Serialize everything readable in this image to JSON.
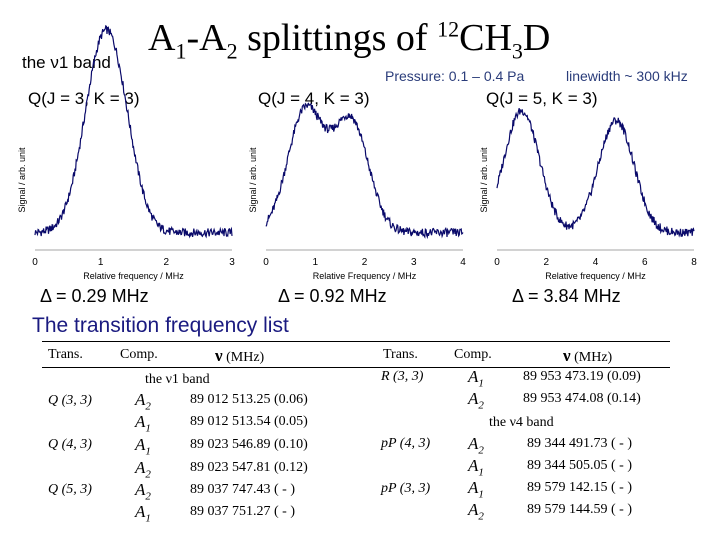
{
  "header": {
    "band_label": "the ν1 band",
    "title_main": "A",
    "title_sub1": "1",
    "title_dash": "-A",
    "title_sub2": "2",
    "title_mid": " splittings of ",
    "title_sup": "12",
    "title_ch": "CH",
    "title_sub3": "3",
    "title_d": "D",
    "pressure": "Pressure: 0.1 – 0.4 Pa",
    "linewidth": "linewidth ~ 300 kHz"
  },
  "panels": [
    {
      "label": "Q(J = 3, K = 3)",
      "delta": "Δ = 0.29 MHz"
    },
    {
      "label": "Q(J = 4, K = 3)",
      "delta": "Δ = 0.92 MHz"
    },
    {
      "label": "Q(J = 5, K = 3)",
      "delta": "Δ = 3.84 MHz"
    }
  ],
  "chart_data": [
    {
      "type": "line",
      "title": "Q(J = 3, K = 3)",
      "xlabel": "Relative frequency / MHz",
      "ylabel": "Signal / arb. unit",
      "xlim": [
        0,
        3
      ],
      "xticks": [
        "0",
        "1",
        "2",
        "3"
      ],
      "peaks_mhz": [
        0.95,
        1.24
      ],
      "splitting_mhz": 0.29
    },
    {
      "type": "line",
      "title": "Q(J = 4, K = 3)",
      "xlabel": "Relative Frequency / MHz",
      "ylabel": "Signal / arb. unit",
      "xlim": [
        0,
        4
      ],
      "xticks": [
        "0",
        "1",
        "2",
        "3",
        "4"
      ],
      "peaks_mhz": [
        0.8,
        1.72
      ],
      "splitting_mhz": 0.92
    },
    {
      "type": "line",
      "title": "Q(J = 5, K = 3)",
      "xlabel": "Relative frequency / MHz",
      "ylabel": "Signal / arb. unit",
      "xlim": [
        0,
        8
      ],
      "xticks": [
        "0",
        "2",
        "4",
        "6",
        "8"
      ],
      "peaks_mhz": [
        1.0,
        4.84
      ],
      "splitting_mhz": 3.84
    }
  ],
  "list": {
    "heading": "The transition frequency list",
    "col_trans": "Trans.",
    "col_comp": "Comp.",
    "col_nu_sym": "ν",
    "col_nu_unit": " (MHz)",
    "nu1_band": "the ν1 band",
    "nu4_band": "the ν4 band",
    "left_trans": [
      "Q (3, 3)",
      "Q (4, 3)",
      "Q (5, 3)"
    ],
    "left_rows": [
      {
        "comp": "A",
        "sub": "2",
        "value": "89 012 513.25 (0.06)"
      },
      {
        "comp": "A",
        "sub": "1",
        "value": "89 012 513.54 (0.05)"
      },
      {
        "comp": "A",
        "sub": "1",
        "value": "89 023 546.89 (0.10)"
      },
      {
        "comp": "A",
        "sub": "2",
        "value": "89 023 547.81 (0.12)"
      },
      {
        "comp": "A",
        "sub": "2",
        "value": "89 037 747.43 ( - )"
      },
      {
        "comp": "A",
        "sub": "1",
        "value": "89 037 751.27 ( - )"
      }
    ],
    "right_trans": [
      "R (3, 3)",
      "pP (4, 3)",
      "pP (3, 3)"
    ],
    "right_rows_nu1": [
      {
        "comp": "A",
        "sub": "1",
        "value": "89 953 473.19 (0.09)"
      },
      {
        "comp": "A",
        "sub": "2",
        "value": "89 953 474.08 (0.14)"
      }
    ],
    "right_rows_nu4": [
      {
        "comp": "A",
        "sub": "2",
        "value": "89 344 491.73 ( - )"
      },
      {
        "comp": "A",
        "sub": "1",
        "value": "89 344 505.05 ( - )"
      },
      {
        "comp": "A",
        "sub": "1",
        "value": "89 579 142.15 ( - )"
      },
      {
        "comp": "A",
        "sub": "2",
        "value": "89 579 144.59 ( - )"
      }
    ]
  },
  "colors": {
    "trace": "#0a0a6a",
    "accent": "#2a3c7a",
    "heading": "#1a1a80"
  }
}
